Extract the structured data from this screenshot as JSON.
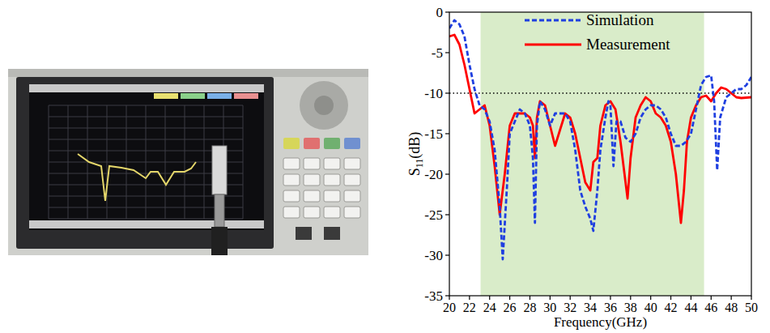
{
  "chart_data": {
    "type": "line",
    "x_label": "Frequency(GHz)",
    "y_label": "S11(dB)",
    "xlim": [
      20,
      50
    ],
    "xticks": [
      20,
      22,
      24,
      26,
      28,
      30,
      32,
      34,
      36,
      38,
      40,
      42,
      44,
      46,
      48,
      50
    ],
    "ylim": [
      -35,
      0
    ],
    "yticks": [
      -35,
      -30,
      -25,
      -20,
      -15,
      -10,
      -5,
      0
    ],
    "legend": "top",
    "shaded_range": [
      23.1,
      45.3
    ],
    "reference_line": -10,
    "series": [
      {
        "name": "Simulation",
        "color": "#1f3fe0",
        "line_style": "dashed",
        "x": [
          20,
          20.5,
          21,
          21.5,
          22,
          22.5,
          23,
          23.5,
          24,
          24.5,
          25,
          25.3,
          25.7,
          26,
          26.5,
          27,
          27.5,
          28,
          28.3,
          28.5,
          28.7,
          29,
          29.5,
          30,
          30.5,
          31,
          31.5,
          32,
          32.5,
          33,
          33.5,
          34,
          34.3,
          34.7,
          35,
          35.5,
          35.8,
          36,
          36.3,
          36.6,
          37,
          37.5,
          38,
          38.5,
          39,
          39.5,
          40,
          40.5,
          41,
          41.5,
          42,
          42.5,
          43,
          43.5,
          44,
          44.5,
          45,
          45.5,
          46,
          46.3,
          46.6,
          46.9,
          47.5,
          48,
          48.5,
          49,
          49.5,
          50
        ],
        "values": [
          -2,
          -1,
          -1.5,
          -3,
          -6.5,
          -9.5,
          -11.5,
          -12,
          -13.5,
          -17,
          -24,
          -30.5,
          -22,
          -15,
          -13.5,
          -12,
          -12.5,
          -14,
          -18,
          -26,
          -14,
          -11,
          -12,
          -14,
          -12.5,
          -12.5,
          -12.5,
          -13.5,
          -17,
          -22,
          -24,
          -25.5,
          -27,
          -22,
          -17,
          -13,
          -11,
          -11.5,
          -19,
          -13.5,
          -13.5,
          -15.5,
          -16,
          -15,
          -13,
          -12,
          -11.5,
          -11.5,
          -12,
          -13,
          -15,
          -16.5,
          -16.5,
          -16,
          -15,
          -12,
          -9,
          -8,
          -7.8,
          -11,
          -19.5,
          -13,
          -10.5,
          -10,
          -9.5,
          -9.5,
          -9,
          -8
        ]
      },
      {
        "name": "Measurement",
        "color": "#ff0000",
        "line_style": "solid",
        "x": [
          20,
          20.5,
          21,
          21.5,
          22,
          22.5,
          23,
          23.5,
          24,
          24.5,
          25,
          25.5,
          26,
          26.5,
          27,
          27.5,
          28,
          28.3,
          28.5,
          28.7,
          29,
          29.5,
          30,
          30.5,
          31,
          31.5,
          32,
          32.5,
          33,
          33.5,
          34,
          34.3,
          34.7,
          35,
          35.5,
          36,
          36.5,
          37,
          37.5,
          37.7,
          38,
          38.5,
          39,
          39.5,
          40,
          40.5,
          41,
          41.5,
          42,
          42.5,
          43,
          43.3,
          43.6,
          44,
          44.5,
          45,
          45.5,
          46,
          46.5,
          47,
          47.5,
          48,
          48.5,
          49,
          50
        ],
        "values": [
          -3,
          -2.8,
          -4,
          -6.5,
          -9.5,
          -12.5,
          -12,
          -11.5,
          -14,
          -19,
          -25,
          -20,
          -14,
          -12.5,
          -12.5,
          -12.5,
          -13,
          -14,
          -18,
          -13,
          -11,
          -11.5,
          -14,
          -16.5,
          -14.5,
          -12.5,
          -13,
          -15,
          -18,
          -21,
          -22,
          -18.5,
          -18,
          -14,
          -11.5,
          -11,
          -12,
          -16,
          -21,
          -23,
          -18,
          -13,
          -11.5,
          -10.5,
          -11,
          -12.5,
          -13,
          -14,
          -16,
          -20,
          -26,
          -22,
          -16,
          -13,
          -11.5,
          -10.5,
          -10.3,
          -11,
          -10,
          -9.3,
          -9.5,
          -10,
          -10.5,
          -10.6,
          -10.5
        ]
      }
    ]
  }
}
